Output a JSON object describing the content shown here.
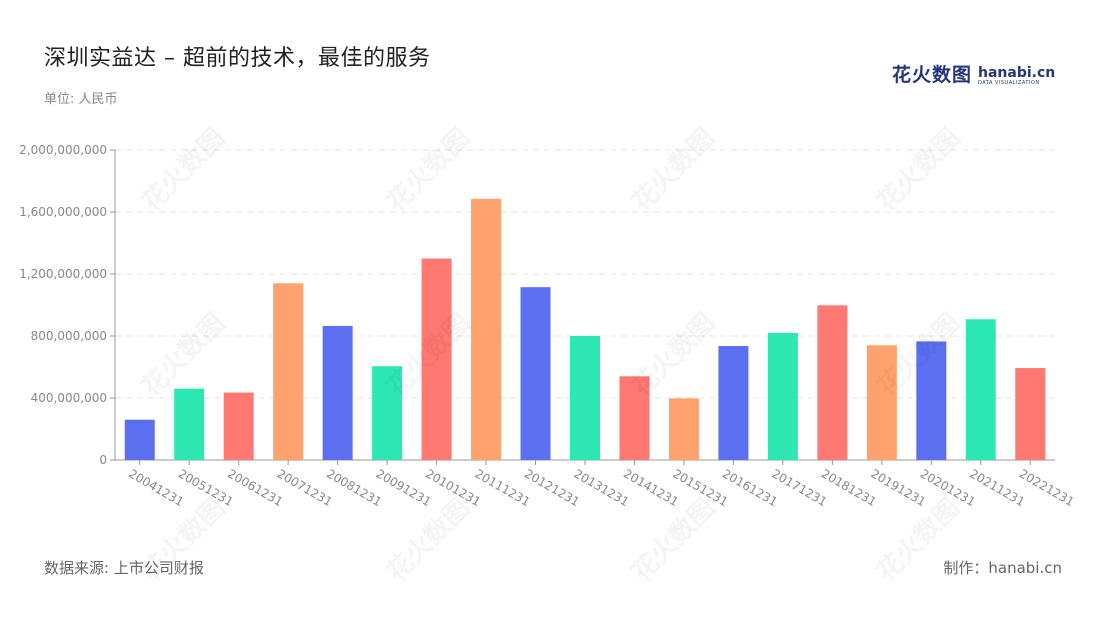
{
  "header": {
    "title": "深圳实益达 – 超前的技术，最佳的服务",
    "unit": "单位: 人民币"
  },
  "logo": {
    "cn": "花火数图",
    "en": "hanabi.cn",
    "sub": "DATA VISUALIZATION"
  },
  "footer": {
    "source": "数据来源: 上市公司财报",
    "credit": "制作：hanabi.cn"
  },
  "colors": [
    "#5b6ff0",
    "#2de8b3",
    "#ff7872",
    "#ffa26e"
  ],
  "chart_data": {
    "type": "bar",
    "categories": [
      "20041231",
      "20051231",
      "20061231",
      "20071231",
      "20081231",
      "20091231",
      "20101231",
      "20111231",
      "20121231",
      "20131231",
      "20141231",
      "20151231",
      "20161231",
      "20171231",
      "20181231",
      "20191231",
      "20201231",
      "20211231",
      "20221231"
    ],
    "values": [
      260000000,
      460000000,
      435000000,
      1140000000,
      865000000,
      605000000,
      1300000000,
      1685000000,
      1115000000,
      800000000,
      540000000,
      398000000,
      735000000,
      820000000,
      998000000,
      740000000,
      765000000,
      908000000,
      593000000
    ],
    "yticks": [
      "0",
      "400,000,000",
      "800,000,000",
      "1,200,000,000",
      "1,600,000,000",
      "2,000,000,000"
    ],
    "ylim": [
      0,
      2000000000
    ],
    "grid": true,
    "xlabel": "",
    "ylabel": ""
  }
}
